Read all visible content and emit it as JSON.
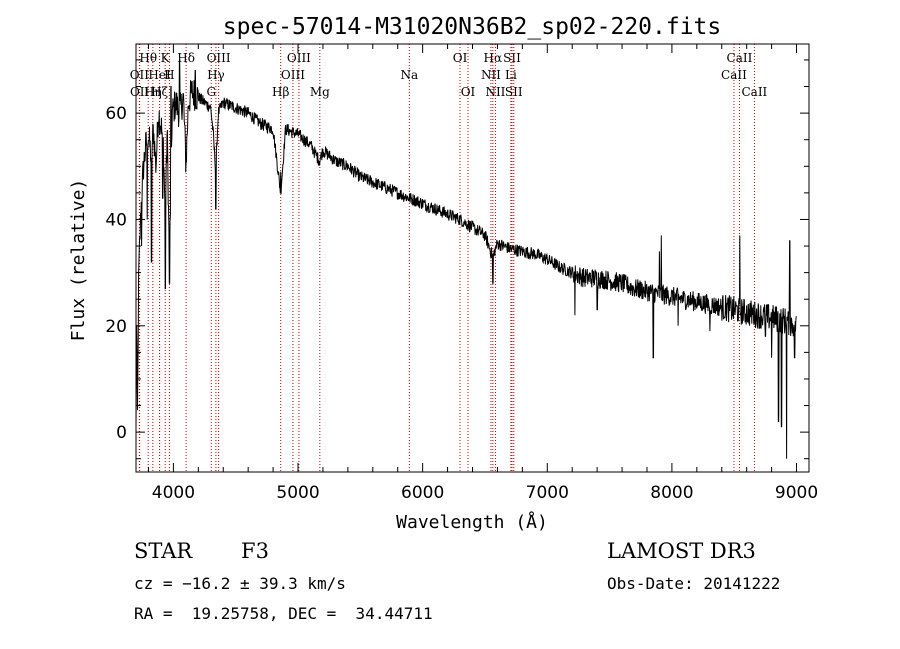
{
  "chart_data": {
    "type": "line",
    "title": "spec-57014-M31020N36B2_sp02-220.fits",
    "xlabel": "Wavelength (Å)",
    "ylabel": "Flux (relative)",
    "xlim": [
      3700,
      9100
    ],
    "ylim": [
      -7.5,
      73
    ],
    "xticks": [
      4000,
      5000,
      6000,
      7000,
      8000,
      9000
    ],
    "yticks": [
      0,
      20,
      40,
      60
    ],
    "grid": false,
    "line_color": "#000000",
    "marker_color": "#c00000",
    "spectrum_anchors": [
      [
        3700,
        0
      ],
      [
        3705,
        22
      ],
      [
        3712,
        3
      ],
      [
        3722,
        30
      ],
      [
        3740,
        42
      ],
      [
        3760,
        50
      ],
      [
        3780,
        54
      ],
      [
        3800,
        56
      ],
      [
        3820,
        52
      ],
      [
        3840,
        57
      ],
      [
        3860,
        50
      ],
      [
        3880,
        60
      ],
      [
        3900,
        58
      ],
      [
        3920,
        54
      ],
      [
        3935,
        40
      ],
      [
        3950,
        57
      ],
      [
        3968,
        32
      ],
      [
        3990,
        60
      ],
      [
        4020,
        62
      ],
      [
        4050,
        60
      ],
      [
        4080,
        63
      ],
      [
        4101,
        50
      ],
      [
        4120,
        62
      ],
      [
        4150,
        64
      ],
      [
        4200,
        63
      ],
      [
        4250,
        62
      ],
      [
        4300,
        61
      ],
      [
        4320,
        56
      ],
      [
        4340,
        49
      ],
      [
        4360,
        60
      ],
      [
        4400,
        62
      ],
      [
        4500,
        61
      ],
      [
        4600,
        60
      ],
      [
        4700,
        58
      ],
      [
        4800,
        57
      ],
      [
        4861,
        45
      ],
      [
        4900,
        57
      ],
      [
        5000,
        56
      ],
      [
        5100,
        54
      ],
      [
        5172,
        51
      ],
      [
        5200,
        53
      ],
      [
        5300,
        51
      ],
      [
        5400,
        50
      ],
      [
        5500,
        48
      ],
      [
        5600,
        47
      ],
      [
        5700,
        46
      ],
      [
        5800,
        45
      ],
      [
        5893,
        44
      ],
      [
        5950,
        43.5
      ],
      [
        6000,
        43
      ],
      [
        6100,
        42
      ],
      [
        6200,
        41
      ],
      [
        6300,
        40
      ],
      [
        6400,
        38.5
      ],
      [
        6500,
        37
      ],
      [
        6563,
        33
      ],
      [
        6600,
        35.5
      ],
      [
        6700,
        34.5
      ],
      [
        6800,
        34
      ],
      [
        6900,
        33.5
      ],
      [
        7000,
        32.5
      ],
      [
        7100,
        31
      ],
      [
        7200,
        30
      ],
      [
        7300,
        29
      ],
      [
        7400,
        29
      ],
      [
        7500,
        28.5
      ],
      [
        7600,
        28
      ],
      [
        7700,
        27
      ],
      [
        7800,
        26.5
      ],
      [
        7900,
        26
      ],
      [
        8000,
        25.5
      ],
      [
        8100,
        25
      ],
      [
        8200,
        24.5
      ],
      [
        8300,
        24
      ],
      [
        8400,
        23.5
      ],
      [
        8500,
        23
      ],
      [
        8600,
        22.5
      ],
      [
        8700,
        22
      ],
      [
        8800,
        21.5
      ],
      [
        8900,
        21
      ],
      [
        9000,
        20
      ]
    ],
    "spectrum_spikes": [
      [
        3745,
        35
      ],
      [
        3790,
        40
      ],
      [
        3825,
        32
      ],
      [
        3915,
        44
      ],
      [
        3935,
        27
      ],
      [
        3968,
        28
      ],
      [
        3980,
        65
      ],
      [
        4050,
        70
      ],
      [
        4175,
        68
      ],
      [
        4340,
        42
      ],
      [
        4861,
        49
      ],
      [
        6563,
        28
      ],
      [
        7222,
        22
      ],
      [
        7400,
        23
      ],
      [
        7850,
        14
      ],
      [
        7900,
        34
      ],
      [
        7915,
        37
      ],
      [
        8050,
        20
      ],
      [
        8305,
        19
      ],
      [
        8545,
        37
      ],
      [
        8750,
        18
      ],
      [
        8800,
        14
      ],
      [
        8855,
        2
      ],
      [
        8880,
        1
      ],
      [
        8920,
        -5
      ],
      [
        8945,
        36
      ],
      [
        8985,
        14
      ]
    ],
    "line_markers": [
      {
        "name": "Hθ",
        "wavelength": 3798,
        "row": 1
      },
      {
        "name": "OII",
        "wavelength": 3727,
        "row": 2
      },
      {
        "name": "OII",
        "wavelength": 3729,
        "row": 3
      },
      {
        "name": "K",
        "wavelength": 3934,
        "row": 1
      },
      {
        "name": "HeI",
        "wavelength": 3889,
        "row": 2
      },
      {
        "name": "Hη",
        "wavelength": 3835,
        "row": 3
      },
      {
        "name": "H",
        "wavelength": 3968,
        "row": 2
      },
      {
        "name": "Hζ",
        "wavelength": 3889,
        "row": 3
      },
      {
        "name": "Hδ",
        "wavelength": 4102,
        "row": 1
      },
      {
        "name": "G",
        "wavelength": 4304,
        "row": 3
      },
      {
        "name": "OIII",
        "wavelength": 4363,
        "row": 1
      },
      {
        "name": "Hγ",
        "wavelength": 4341,
        "row": 2
      },
      {
        "name": "Hβ",
        "wavelength": 4861,
        "row": 3
      },
      {
        "name": "OIII",
        "wavelength": 5007,
        "row": 1
      },
      {
        "name": "OIII",
        "wavelength": 4959,
        "row": 2
      },
      {
        "name": "Mg",
        "wavelength": 5175,
        "row": 3
      },
      {
        "name": "Na",
        "wavelength": 5893,
        "row": 2
      },
      {
        "name": "OI",
        "wavelength": 6300,
        "row": 1
      },
      {
        "name": "OI",
        "wavelength": 6364,
        "row": 3
      },
      {
        "name": "Hα",
        "wavelength": 6563,
        "row": 1
      },
      {
        "name": "NII",
        "wavelength": 6548,
        "row": 2
      },
      {
        "name": "NII",
        "wavelength": 6584,
        "row": 3
      },
      {
        "name": "SII",
        "wavelength": 6717,
        "row": 1
      },
      {
        "name": "Li",
        "wavelength": 6708,
        "row": 2
      },
      {
        "name": "SII",
        "wavelength": 6731,
        "row": 3
      },
      {
        "name": "CaII",
        "wavelength": 8542,
        "row": 1
      },
      {
        "name": "CaII",
        "wavelength": 8498,
        "row": 2
      },
      {
        "name": "CaII",
        "wavelength": 8662,
        "row": 3
      }
    ]
  },
  "info": {
    "object_class": "STAR",
    "subclass": "F3",
    "survey": "LAMOST DR3",
    "cz": "cz = −16.2 ± 39.3 km/s",
    "obs_date": "Obs-Date: 20141222",
    "coords": "RA =  19.25758, DEC =  34.44711"
  }
}
